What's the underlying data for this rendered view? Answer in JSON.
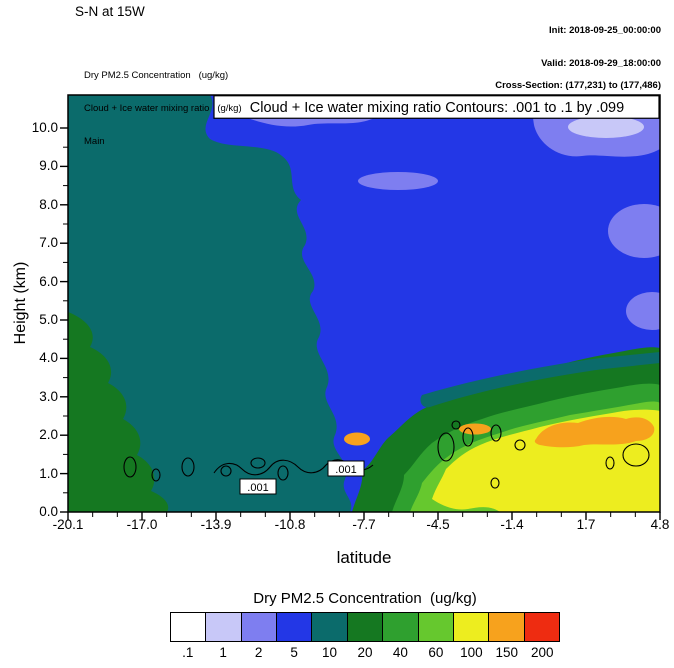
{
  "header": {
    "title": "S-N at 15W",
    "init_line": "Init: 2018-09-25_00:00:00",
    "valid_line": "Valid: 2018-09-29_18:00:00",
    "field_line1": "Dry PM2.5 Concentration   (ug/kg)",
    "field_line2": "Cloud + Ice water mixing ratio   (g/kg)",
    "field_line3": "Main",
    "cross_section": "Cross-Section: (177,231) to (177,486)"
  },
  "plot": {
    "overlay_title": "Cloud + Ice water mixing ratio Contours: .001 to .1 by .099",
    "xlabel": "latitude",
    "ylabel": "Height (km)",
    "y_ticks": [
      "10.0",
      "9.0",
      "8.0",
      "7.0",
      "6.0",
      "5.0",
      "4.0",
      "3.0",
      "2.0",
      "1.0",
      "0.0"
    ],
    "x_ticks": [
      "-20.1",
      "-17.0",
      "-13.9",
      "-10.8",
      "-7.7",
      "-4.5",
      "-1.4",
      "1.7",
      "4.8"
    ],
    "contour_label_1": ".001",
    "contour_label_2": ".001"
  },
  "colorbar": {
    "title": "Dry PM2.5 Concentration  (ug/kg)",
    "labels": [
      ".1",
      "1",
      "2",
      "5",
      "10",
      "20",
      "40",
      "60",
      "100",
      "150",
      "200"
    ],
    "colors": [
      "#FFFFFF",
      "#C8C8F8",
      "#7E7EF0",
      "#2337E6",
      "#0B6B6B",
      "#157821",
      "#2FA02F",
      "#66C82E",
      "#EDED1F",
      "#F7A21D",
      "#EE2C11"
    ]
  },
  "chart_data": {
    "type": "heatmap",
    "title": "S-N at 15W",
    "fill_field": "Dry PM2.5 Concentration (ug/kg)",
    "contour_field": "Cloud + Ice water mixing ratio (g/kg)",
    "contour_levels_text": ".001 to .1 by .099",
    "contour_levels": [
      0.001,
      0.1
    ],
    "xlabel": "latitude",
    "ylabel": "Height (km)",
    "xlim": [
      -20.1,
      4.8
    ],
    "ylim": [
      0.0,
      10.5
    ],
    "x": [
      -20.1,
      -17.0,
      -13.9,
      -10.8,
      -7.7,
      -4.5,
      -1.4,
      1.7,
      4.8
    ],
    "y": [
      10,
      9,
      8,
      7,
      6,
      5,
      4,
      3,
      2,
      1,
      0
    ],
    "fill_levels": [
      0.1,
      1,
      2,
      5,
      10,
      20,
      40,
      60,
      100,
      150,
      200
    ],
    "fill_colors": [
      "#FFFFFF",
      "#C8C8F8",
      "#7E7EF0",
      "#2337E6",
      "#0B6B6B",
      "#157821",
      "#2FA02F",
      "#66C82E",
      "#EDED1F",
      "#F7A21D",
      "#EE2C11"
    ],
    "legend_position": "bottom",
    "grid": false,
    "values_approx_rows_y10_to_y0": [
      [
        7,
        7,
        3,
        1.5,
        3,
        3,
        3,
        1.5,
        1.5
      ],
      [
        7,
        7,
        7,
        3,
        3,
        3,
        3,
        3,
        1.5
      ],
      [
        7,
        7,
        3,
        3,
        1.5,
        3,
        3,
        3,
        3
      ],
      [
        7,
        7,
        7,
        3,
        3,
        3,
        3,
        3,
        1.5
      ],
      [
        7,
        7,
        7,
        7,
        3,
        3,
        3,
        3,
        3
      ],
      [
        15,
        7,
        7,
        7,
        3,
        3,
        3,
        3,
        3
      ],
      [
        15,
        15,
        7,
        7,
        7,
        3,
        3,
        7,
        7
      ],
      [
        15,
        15,
        7,
        7,
        7,
        15,
        30,
        30,
        15
      ],
      [
        15,
        15,
        15,
        7,
        30,
        80,
        120,
        170,
        80
      ],
      [
        15,
        15,
        15,
        15,
        30,
        80,
        120,
        80,
        80
      ],
      [
        15,
        15,
        15,
        15,
        30,
        50,
        80,
        80,
        80
      ]
    ],
    "note": "Filled cross-section contour plot; fill values estimated from colors at tick intersections; black overlay contours (.001) lie near 1 km between latitudes -17 and -4"
  }
}
